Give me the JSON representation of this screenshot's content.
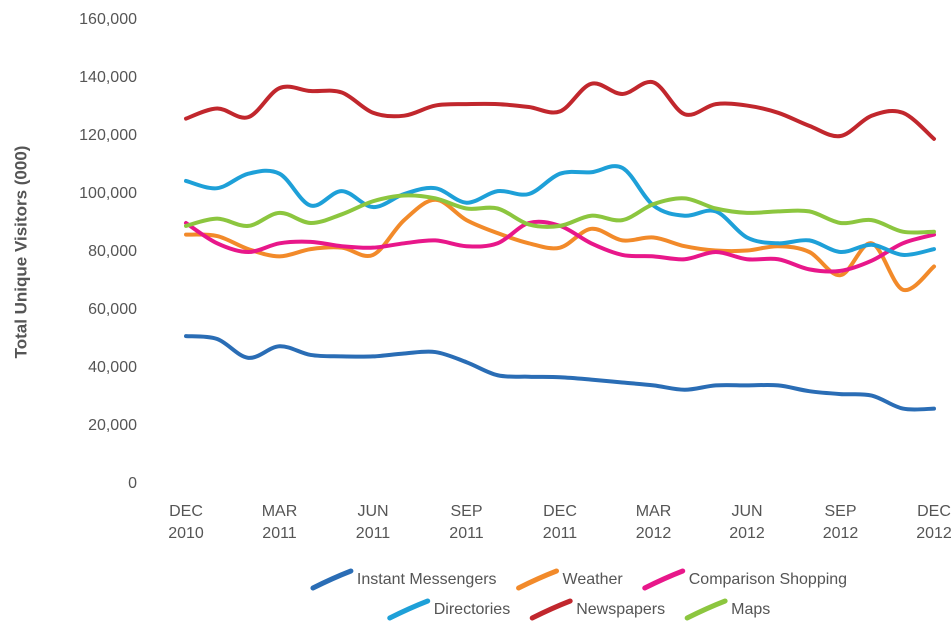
{
  "chart_data": {
    "type": "line",
    "y_label": "Total Unique Visitors (000)",
    "categories": [
      "DEC 2010",
      null,
      null,
      "MAR 2011",
      null,
      null,
      "JUN 2011",
      null,
      null,
      "SEP 2011",
      null,
      null,
      "DEC 2011",
      null,
      null,
      "MAR 2012",
      null,
      null,
      "JUN 2012",
      null,
      null,
      "SEP 2012",
      null,
      null,
      "DEC 2012"
    ],
    "ylim": [
      0,
      160000
    ],
    "yticks": [
      {
        "value": 0,
        "label": "0"
      },
      {
        "value": 20000,
        "label": "20,000"
      },
      {
        "value": 40000,
        "label": "40,000"
      },
      {
        "value": 60000,
        "label": "60,000"
      },
      {
        "value": 80000,
        "label": "80,000"
      },
      {
        "value": 100000,
        "label": "100,000"
      },
      {
        "value": 120000,
        "label": "120,000"
      },
      {
        "value": 140000,
        "label": "140,000"
      },
      {
        "value": 160000,
        "label": "160,000"
      }
    ],
    "grid": false,
    "legend": "bottom",
    "series": [
      {
        "name": "Instant Messengers",
        "color": "#2a6db5",
        "values": [
          51000,
          50000,
          43500,
          47500,
          44500,
          44000,
          44000,
          45000,
          45500,
          42000,
          37500,
          37000,
          36800,
          36000,
          35000,
          34000,
          32500,
          34000,
          34000,
          34000,
          32000,
          31000,
          30500,
          26000,
          26000
        ]
      },
      {
        "name": "Weather",
        "color": "#f28a2a",
        "values": [
          86000,
          85500,
          81000,
          78500,
          81000,
          81500,
          79000,
          91000,
          98000,
          91000,
          86500,
          83000,
          81500,
          88000,
          84000,
          85000,
          82000,
          80500,
          80500,
          82000,
          80000,
          72000,
          83000,
          67000,
          75000
        ]
      },
      {
        "name": "Comparison Shopping",
        "color": "#e8178a",
        "values": [
          90000,
          83000,
          80000,
          83000,
          83500,
          82000,
          81500,
          83000,
          84000,
          82000,
          83000,
          90000,
          89000,
          83000,
          79000,
          78500,
          77500,
          80000,
          77500,
          77500,
          74000,
          73500,
          77000,
          83000,
          86000
        ]
      },
      {
        "name": "Directories",
        "color": "#1ea0d8",
        "values": [
          104500,
          102000,
          107000,
          107000,
          96000,
          101000,
          95500,
          100000,
          102000,
          97000,
          101000,
          100000,
          107000,
          107500,
          109000,
          96000,
          92500,
          94000,
          85000,
          83000,
          84000,
          80000,
          82500,
          79000,
          81000
        ]
      },
      {
        "name": "Newspapers",
        "color": "#c1272d",
        "values": [
          126000,
          129500,
          126500,
          136500,
          135500,
          135000,
          128000,
          127000,
          130500,
          131000,
          131000,
          130000,
          128500,
          138000,
          134500,
          138500,
          127500,
          131000,
          130500,
          128000,
          123500,
          120000,
          127000,
          128000,
          119000
        ]
      },
      {
        "name": "Maps",
        "color": "#8cc63f",
        "values": [
          89000,
          91500,
          89000,
          93500,
          90000,
          93000,
          97500,
          99500,
          98500,
          95000,
          95000,
          89500,
          89000,
          92500,
          91000,
          96500,
          98500,
          95000,
          93500,
          94000,
          94000,
          90000,
          91000,
          87000,
          87000
        ]
      }
    ]
  }
}
